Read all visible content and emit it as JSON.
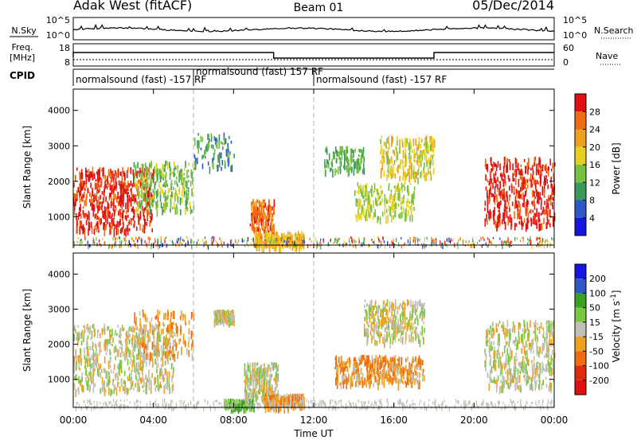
{
  "header": {
    "station": "Adak West (fitACF)",
    "beam": "Beam 01",
    "date": "05/Dec/2014"
  },
  "noise_panel": {
    "left_label": "N.Sky",
    "left_ticks": [
      "10^5",
      "10^0"
    ],
    "right_label": "N.Search",
    "right_ticks": [
      "10^5",
      "10^0"
    ]
  },
  "freq_panel": {
    "left_label_line1": "Freq.",
    "left_label_line2": "[MHz]",
    "left_ticks": [
      "18",
      "8"
    ],
    "right_label": "Nave",
    "right_ticks": [
      "60",
      "0"
    ]
  },
  "cpid_panel": {
    "label": "CPID",
    "segments": [
      {
        "text": "normalsound (fast) -157 RF",
        "start_hour": 0,
        "end_hour": 6
      },
      {
        "text": "normalsound (fast) 157 RF",
        "start_hour": 6,
        "end_hour": 12
      },
      {
        "text": "normalsound (fast) -157 RF",
        "start_hour": 12,
        "end_hour": 24
      }
    ]
  },
  "colors": {
    "power_scale": [
      "#1515e0",
      "#2e58c8",
      "#3a9a5a",
      "#78c040",
      "#e8d020",
      "#f0a020",
      "#f06a10",
      "#e01010"
    ],
    "velocity_scale": [
      "#1515e0",
      "#2e58c8",
      "#3aa020",
      "#78c840",
      "#c0c0b8",
      "#f0a020",
      "#f06a10",
      "#e02a10",
      "#e01010"
    ],
    "dash_line": "#b0b0b0"
  },
  "chart_data": [
    {
      "type": "heatmap",
      "name": "power",
      "ylabel": "Slant Range [km]",
      "y_ticks": [
        "1000",
        "2000",
        "3000",
        "4000"
      ],
      "ylim": [
        200,
        4600
      ],
      "colorbar_label": "Power [dB]",
      "colorbar_ticks": [
        "4",
        "8",
        "12",
        "16",
        "20",
        "24",
        "28"
      ],
      "value_range": [
        0,
        32
      ],
      "regions": [
        {
          "t0": 0.0,
          "t1": 4.0,
          "r_lo": 650,
          "r_hi": 2400,
          "value": 30,
          "scatter": 0.75
        },
        {
          "t0": 3.0,
          "t1": 6.0,
          "r_lo": 1200,
          "r_hi": 2600,
          "value": 14,
          "scatter": 0.5
        },
        {
          "t0": 6.0,
          "t1": 8.0,
          "r_lo": 2400,
          "r_hi": 3400,
          "value": 10,
          "scatter": 0.25
        },
        {
          "t0": 8.8,
          "t1": 10.0,
          "r_lo": 600,
          "r_hi": 1500,
          "value": 26,
          "scatter": 0.8
        },
        {
          "t0": 9.0,
          "t1": 11.5,
          "r_lo": 200,
          "r_hi": 600,
          "value": 20,
          "scatter": 0.5
        },
        {
          "t0": 12.5,
          "t1": 14.5,
          "r_lo": 2300,
          "r_hi": 3000,
          "value": 12,
          "scatter": 0.35
        },
        {
          "t0": 14.0,
          "t1": 17.0,
          "r_lo": 1000,
          "r_hi": 2000,
          "value": 16,
          "scatter": 0.4
        },
        {
          "t0": 15.3,
          "t1": 18.0,
          "r_lo": 2100,
          "r_hi": 3300,
          "value": 18,
          "scatter": 0.5
        },
        {
          "t0": 20.5,
          "t1": 24.0,
          "r_lo": 800,
          "r_hi": 2700,
          "value": 30,
          "scatter": 0.7
        }
      ]
    },
    {
      "type": "heatmap",
      "name": "velocity",
      "ylabel": "Slant Range [km]",
      "y_ticks": [
        "1000",
        "2000",
        "3000",
        "4000"
      ],
      "ylim": [
        200,
        4600
      ],
      "colorbar_label": "Velocity [m s^-1]",
      "colorbar_ticks": [
        "200",
        "100",
        "50",
        "15",
        "-15",
        "-50",
        "-100",
        "-200"
      ],
      "value_range": [
        -250,
        250
      ],
      "regions": [
        {
          "t0": 0.0,
          "t1": 5.0,
          "r_lo": 700,
          "r_hi": 2600,
          "value": 0,
          "scatter": 0.7
        },
        {
          "t0": 3.0,
          "t1": 6.0,
          "r_lo": 1700,
          "r_hi": 3000,
          "value": -60,
          "scatter": 0.3
        },
        {
          "t0": 7.0,
          "t1": 8.0,
          "r_lo": 2700,
          "r_hi": 3000,
          "value": 0,
          "scatter": 0.9
        },
        {
          "t0": 8.5,
          "t1": 10.2,
          "r_lo": 500,
          "r_hi": 1500,
          "value": 0,
          "scatter": 0.85
        },
        {
          "t0": 9.5,
          "t1": 11.5,
          "r_lo": 250,
          "r_hi": 600,
          "value": -60,
          "scatter": 0.7
        },
        {
          "t0": 7.5,
          "t1": 9.0,
          "r_lo": 250,
          "r_hi": 450,
          "value": 60,
          "scatter": 0.7
        },
        {
          "t0": 13.0,
          "t1": 17.5,
          "r_lo": 900,
          "r_hi": 1700,
          "value": -70,
          "scatter": 0.5
        },
        {
          "t0": 14.5,
          "t1": 17.5,
          "r_lo": 2100,
          "r_hi": 3300,
          "value": 0,
          "scatter": 0.6
        },
        {
          "t0": 20.5,
          "t1": 24.0,
          "r_lo": 800,
          "r_hi": 2700,
          "value": 0,
          "scatter": 0.75
        }
      ]
    }
  ],
  "x_axis": {
    "label": "Time UT",
    "ticks": [
      "00:00",
      "04:00",
      "08:00",
      "12:00",
      "16:00",
      "20:00",
      "00:00"
    ],
    "range_hours": [
      0,
      24
    ]
  }
}
